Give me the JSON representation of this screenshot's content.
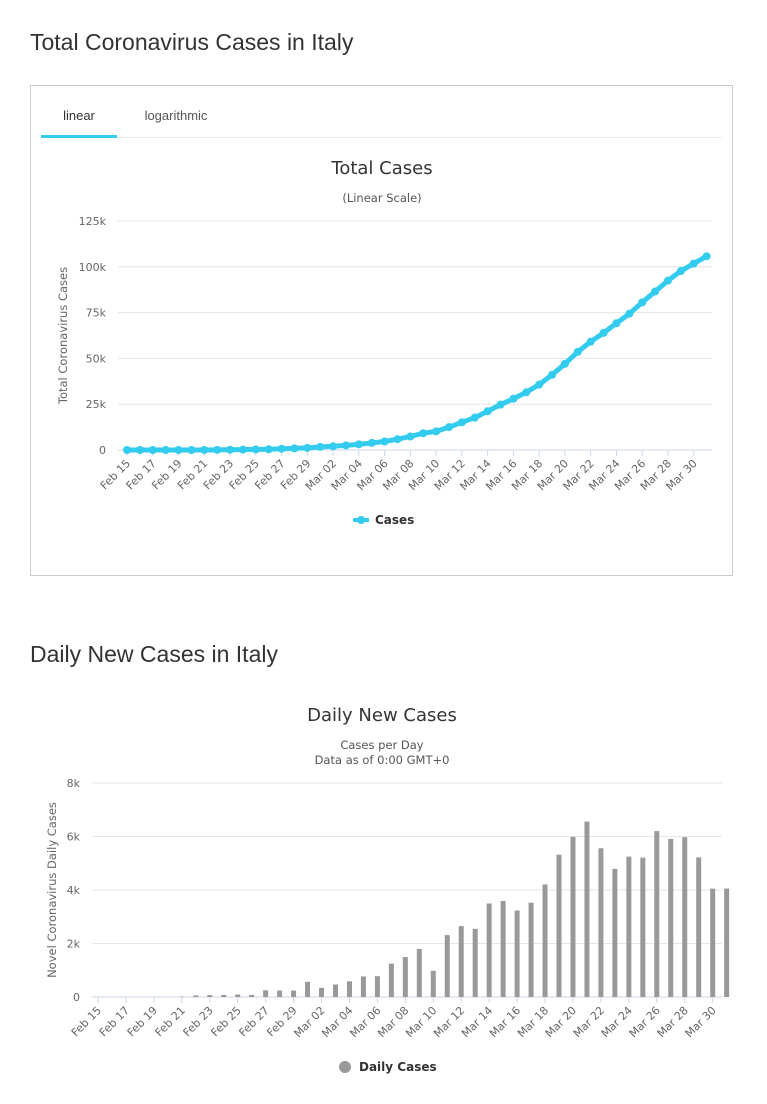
{
  "section1_title": "Total Coronavirus Cases in Italy",
  "section2_title": "Daily New Cases in Italy",
  "tabs": [
    {
      "label": "linear",
      "active": true
    },
    {
      "label": "logarithmic",
      "active": false
    }
  ],
  "accent_color": "#33ccee",
  "bar_color": "#999999",
  "chart_data": [
    {
      "type": "line",
      "title": "Total Cases",
      "subtitle": "(Linear Scale)",
      "ylabel": "Total Coronavirus Cases",
      "xlabel": "",
      "ylim": [
        0,
        125000
      ],
      "yticks": [
        0,
        25000,
        50000,
        75000,
        100000,
        125000
      ],
      "ytick_labels": [
        "0",
        "25k",
        "50k",
        "75k",
        "100k",
        "125k"
      ],
      "categories": [
        "Feb 15",
        "Feb 16",
        "Feb 17",
        "Feb 18",
        "Feb 19",
        "Feb 20",
        "Feb 21",
        "Feb 22",
        "Feb 23",
        "Feb 24",
        "Feb 25",
        "Feb 26",
        "Feb 27",
        "Feb 28",
        "Feb 29",
        "Mar 01",
        "Mar 02",
        "Mar 03",
        "Mar 04",
        "Mar 05",
        "Mar 06",
        "Mar 07",
        "Mar 08",
        "Mar 09",
        "Mar 10",
        "Mar 11",
        "Mar 12",
        "Mar 13",
        "Mar 14",
        "Mar 15",
        "Mar 16",
        "Mar 17",
        "Mar 18",
        "Mar 19",
        "Mar 20",
        "Mar 21",
        "Mar 22",
        "Mar 23",
        "Mar 24",
        "Mar 25",
        "Mar 26",
        "Mar 27",
        "Mar 28",
        "Mar 29",
        "Mar 30",
        "Mar 31"
      ],
      "tick_labels": [
        "Feb 15",
        "Feb 17",
        "Feb 19",
        "Feb 21",
        "Feb 23",
        "Feb 25",
        "Feb 27",
        "Feb 29",
        "Mar 02",
        "Mar 04",
        "Mar 06",
        "Mar 08",
        "Mar 10",
        "Mar 12",
        "Mar 14",
        "Mar 16",
        "Mar 18",
        "Mar 20",
        "Mar 22",
        "Mar 24",
        "Mar 26",
        "Mar 28",
        "Mar 30"
      ],
      "series": [
        {
          "name": "Cases",
          "values": [
            3,
            3,
            3,
            3,
            3,
            3,
            20,
            79,
            150,
            229,
            322,
            400,
            650,
            888,
            1128,
            1694,
            2036,
            2502,
            3089,
            3858,
            4636,
            5883,
            7375,
            9172,
            10149,
            12462,
            15113,
            17660,
            21157,
            24747,
            27980,
            31506,
            35713,
            41035,
            47021,
            53578,
            59138,
            63927,
            69176,
            74386,
            80589,
            86498,
            92472,
            97689,
            101739,
            105792
          ]
        }
      ],
      "legend_position": "bottom",
      "grid": true
    },
    {
      "type": "bar",
      "title": "Daily New Cases",
      "subtitle_lines": [
        "Cases per Day",
        "Data as of 0:00 GMT+0"
      ],
      "ylabel": "Novel Coronavirus Daily Cases",
      "xlabel": "",
      "ylim": [
        0,
        8000
      ],
      "yticks": [
        0,
        2000,
        4000,
        6000,
        8000
      ],
      "ytick_labels": [
        "0",
        "2k",
        "4k",
        "6k",
        "8k"
      ],
      "categories": [
        "Feb 15",
        "Feb 16",
        "Feb 17",
        "Feb 18",
        "Feb 19",
        "Feb 20",
        "Feb 21",
        "Feb 22",
        "Feb 23",
        "Feb 24",
        "Feb 25",
        "Feb 26",
        "Feb 27",
        "Feb 28",
        "Feb 29",
        "Mar 01",
        "Mar 02",
        "Mar 03",
        "Mar 04",
        "Mar 05",
        "Mar 06",
        "Mar 07",
        "Mar 08",
        "Mar 09",
        "Mar 10",
        "Mar 11",
        "Mar 12",
        "Mar 13",
        "Mar 14",
        "Mar 15",
        "Mar 16",
        "Mar 17",
        "Mar 18",
        "Mar 19",
        "Mar 20",
        "Mar 21",
        "Mar 22",
        "Mar 23",
        "Mar 24",
        "Mar 25",
        "Mar 26",
        "Mar 27",
        "Mar 28",
        "Mar 29",
        "Mar 30",
        "Mar 31"
      ],
      "tick_labels": [
        "Feb 15",
        "Feb 17",
        "Feb 19",
        "Feb 21",
        "Feb 23",
        "Feb 25",
        "Feb 27",
        "Feb 29",
        "Mar 02",
        "Mar 04",
        "Mar 06",
        "Mar 08",
        "Mar 10",
        "Mar 12",
        "Mar 14",
        "Mar 16",
        "Mar 18",
        "Mar 20",
        "Mar 22",
        "Mar 24",
        "Mar 26",
        "Mar 28",
        "Mar 30"
      ],
      "series": [
        {
          "name": "Daily Cases",
          "values": [
            0,
            0,
            0,
            0,
            0,
            0,
            17,
            59,
            71,
            79,
            93,
            78,
            250,
            238,
            240,
            566,
            342,
            466,
            587,
            769,
            778,
            1247,
            1492,
            1797,
            977,
            2313,
            2651,
            2547,
            3497,
            3590,
            3233,
            3526,
            4207,
            5322,
            5986,
            6557,
            5560,
            4789,
            5249,
            5210,
            6203,
            5909,
            5974,
            5217,
            4050,
            4053
          ]
        }
      ],
      "legend_position": "bottom",
      "grid": true
    }
  ]
}
